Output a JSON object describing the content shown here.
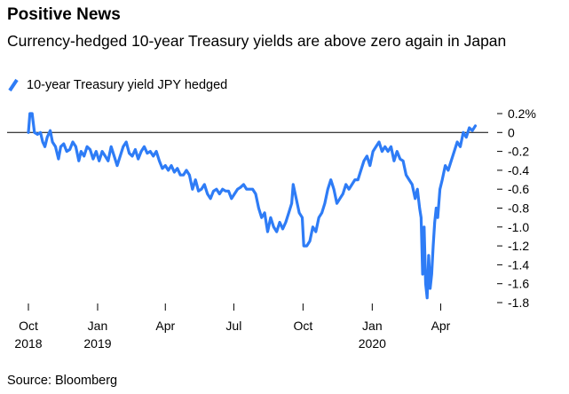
{
  "title": "Positive News",
  "subtitle": "Currency-hedged 10-year Treasury yields are above zero again in Japan",
  "source": "Source: Bloomberg",
  "chart_data": {
    "type": "line",
    "title": "Positive News",
    "subtitle": "Currency-hedged 10-year Treasury yields are above zero again in Japan",
    "legend": "top-left",
    "y_axis_position": "right",
    "ylim": [
      -1.8,
      0.2
    ],
    "y_ticks": [
      0.2,
      0,
      -0.2,
      -0.4,
      -0.6,
      -0.8,
      -1.0,
      -1.2,
      -1.4,
      -1.6,
      -1.8
    ],
    "y_tick_labels": [
      "0.2%",
      "0",
      "-0.2",
      "-0.4",
      "-0.6",
      "-0.8",
      "-1.0",
      "-1.2",
      "-1.4",
      "-1.6",
      "-1.8"
    ],
    "x_range": [
      "2018-10-01",
      "2020-05-20"
    ],
    "x_ticks": [
      {
        "date": "2018-10-01",
        "label": "Oct",
        "year": "2018"
      },
      {
        "date": "2019-01-01",
        "label": "Jan",
        "year": "2019"
      },
      {
        "date": "2019-04-01",
        "label": "Apr",
        "year": ""
      },
      {
        "date": "2019-07-01",
        "label": "Jul",
        "year": ""
      },
      {
        "date": "2019-10-01",
        "label": "Oct",
        "year": ""
      },
      {
        "date": "2020-01-01",
        "label": "Jan",
        "year": "2020"
      },
      {
        "date": "2020-04-01",
        "label": "Apr",
        "year": ""
      }
    ],
    "zero_line": true,
    "grid": false,
    "color": "#2e7cf6",
    "series": [
      {
        "name": "10-year Treasury yield JPY hedged",
        "points": [
          [
            "2018-10-01",
            0.0
          ],
          [
            "2018-10-03",
            0.2
          ],
          [
            "2018-10-06",
            0.2
          ],
          [
            "2018-10-09",
            0.0
          ],
          [
            "2018-10-13",
            -0.02
          ],
          [
            "2018-10-17",
            0.0
          ],
          [
            "2018-10-20",
            -0.1
          ],
          [
            "2018-10-23",
            -0.15
          ],
          [
            "2018-10-26",
            -0.05
          ],
          [
            "2018-10-30",
            0.02
          ],
          [
            "2018-11-02",
            -0.1
          ],
          [
            "2018-11-06",
            -0.15
          ],
          [
            "2018-11-10",
            -0.28
          ],
          [
            "2018-11-13",
            -0.15
          ],
          [
            "2018-11-17",
            -0.12
          ],
          [
            "2018-11-21",
            -0.2
          ],
          [
            "2018-11-25",
            -0.18
          ],
          [
            "2018-11-29",
            -0.1
          ],
          [
            "2018-12-03",
            -0.15
          ],
          [
            "2018-12-07",
            -0.3
          ],
          [
            "2018-12-10",
            -0.2
          ],
          [
            "2018-12-14",
            -0.25
          ],
          [
            "2018-12-18",
            -0.15
          ],
          [
            "2018-12-22",
            -0.18
          ],
          [
            "2018-12-26",
            -0.28
          ],
          [
            "2018-12-30",
            -0.2
          ],
          [
            "2019-01-03",
            -0.3
          ],
          [
            "2019-01-07",
            -0.2
          ],
          [
            "2019-01-11",
            -0.25
          ],
          [
            "2019-01-15",
            -0.3
          ],
          [
            "2019-01-19",
            -0.15
          ],
          [
            "2019-01-23",
            -0.25
          ],
          [
            "2019-01-27",
            -0.35
          ],
          [
            "2019-01-31",
            -0.25
          ],
          [
            "2019-02-04",
            -0.15
          ],
          [
            "2019-02-08",
            -0.1
          ],
          [
            "2019-02-12",
            -0.22
          ],
          [
            "2019-02-16",
            -0.25
          ],
          [
            "2019-02-20",
            -0.18
          ],
          [
            "2019-02-24",
            -0.28
          ],
          [
            "2019-02-28",
            -0.2
          ],
          [
            "2019-03-04",
            -0.15
          ],
          [
            "2019-03-08",
            -0.22
          ],
          [
            "2019-03-12",
            -0.2
          ],
          [
            "2019-03-16",
            -0.25
          ],
          [
            "2019-03-20",
            -0.2
          ],
          [
            "2019-03-24",
            -0.3
          ],
          [
            "2019-03-28",
            -0.38
          ],
          [
            "2019-04-01",
            -0.35
          ],
          [
            "2019-04-05",
            -0.4
          ],
          [
            "2019-04-09",
            -0.35
          ],
          [
            "2019-04-13",
            -0.42
          ],
          [
            "2019-04-17",
            -0.38
          ],
          [
            "2019-04-21",
            -0.45
          ],
          [
            "2019-04-25",
            -0.45
          ],
          [
            "2019-04-29",
            -0.4
          ],
          [
            "2019-05-03",
            -0.45
          ],
          [
            "2019-05-07",
            -0.6
          ],
          [
            "2019-05-11",
            -0.5
          ],
          [
            "2019-05-15",
            -0.62
          ],
          [
            "2019-05-19",
            -0.6
          ],
          [
            "2019-05-23",
            -0.55
          ],
          [
            "2019-05-27",
            -0.65
          ],
          [
            "2019-05-31",
            -0.7
          ],
          [
            "2019-06-04",
            -0.62
          ],
          [
            "2019-06-08",
            -0.6
          ],
          [
            "2019-06-12",
            -0.65
          ],
          [
            "2019-06-16",
            -0.6
          ],
          [
            "2019-06-20",
            -0.62
          ],
          [
            "2019-06-24",
            -0.62
          ],
          [
            "2019-06-28",
            -0.7
          ],
          [
            "2019-07-02",
            -0.65
          ],
          [
            "2019-07-06",
            -0.6
          ],
          [
            "2019-07-10",
            -0.58
          ],
          [
            "2019-07-14",
            -0.55
          ],
          [
            "2019-07-18",
            -0.6
          ],
          [
            "2019-07-22",
            -0.6
          ],
          [
            "2019-07-26",
            -0.6
          ],
          [
            "2019-07-30",
            -0.65
          ],
          [
            "2019-08-03",
            -0.8
          ],
          [
            "2019-08-07",
            -0.9
          ],
          [
            "2019-08-11",
            -0.85
          ],
          [
            "2019-08-15",
            -1.05
          ],
          [
            "2019-08-19",
            -0.9
          ],
          [
            "2019-08-23",
            -1.0
          ],
          [
            "2019-08-27",
            -1.05
          ],
          [
            "2019-08-31",
            -0.95
          ],
          [
            "2019-09-04",
            -1.02
          ],
          [
            "2019-09-08",
            -0.95
          ],
          [
            "2019-09-12",
            -0.85
          ],
          [
            "2019-09-16",
            -0.75
          ],
          [
            "2019-09-18",
            -0.55
          ],
          [
            "2019-09-22",
            -0.7
          ],
          [
            "2019-09-26",
            -0.85
          ],
          [
            "2019-09-30",
            -0.9
          ],
          [
            "2019-10-02",
            -1.2
          ],
          [
            "2019-10-06",
            -1.2
          ],
          [
            "2019-10-10",
            -1.15
          ],
          [
            "2019-10-14",
            -1.0
          ],
          [
            "2019-10-18",
            -1.05
          ],
          [
            "2019-10-22",
            -0.9
          ],
          [
            "2019-10-26",
            -0.85
          ],
          [
            "2019-10-30",
            -0.75
          ],
          [
            "2019-11-03",
            -0.6
          ],
          [
            "2019-11-07",
            -0.5
          ],
          [
            "2019-11-11",
            -0.6
          ],
          [
            "2019-11-15",
            -0.75
          ],
          [
            "2019-11-19",
            -0.7
          ],
          [
            "2019-11-23",
            -0.65
          ],
          [
            "2019-11-27",
            -0.55
          ],
          [
            "2019-12-01",
            -0.6
          ],
          [
            "2019-12-05",
            -0.55
          ],
          [
            "2019-12-09",
            -0.5
          ],
          [
            "2019-12-13",
            -0.5
          ],
          [
            "2019-12-17",
            -0.4
          ],
          [
            "2019-12-21",
            -0.3
          ],
          [
            "2019-12-25",
            -0.25
          ],
          [
            "2019-12-29",
            -0.35
          ],
          [
            "2020-01-02",
            -0.2
          ],
          [
            "2020-01-06",
            -0.15
          ],
          [
            "2020-01-10",
            -0.1
          ],
          [
            "2020-01-14",
            -0.2
          ],
          [
            "2020-01-18",
            -0.15
          ],
          [
            "2020-01-22",
            -0.2
          ],
          [
            "2020-01-26",
            -0.15
          ],
          [
            "2020-01-30",
            -0.3
          ],
          [
            "2020-02-03",
            -0.2
          ],
          [
            "2020-02-07",
            -0.28
          ],
          [
            "2020-02-11",
            -0.3
          ],
          [
            "2020-02-15",
            -0.45
          ],
          [
            "2020-02-19",
            -0.5
          ],
          [
            "2020-02-23",
            -0.55
          ],
          [
            "2020-02-27",
            -0.7
          ],
          [
            "2020-03-01",
            -0.6
          ],
          [
            "2020-03-04",
            -0.8
          ],
          [
            "2020-03-06",
            -0.9
          ],
          [
            "2020-03-08",
            -1.5
          ],
          [
            "2020-03-10",
            -1.0
          ],
          [
            "2020-03-12",
            -1.6
          ],
          [
            "2020-03-14",
            -1.75
          ],
          [
            "2020-03-16",
            -1.3
          ],
          [
            "2020-03-18",
            -1.65
          ],
          [
            "2020-03-20",
            -1.5
          ],
          [
            "2020-03-22",
            -1.2
          ],
          [
            "2020-03-24",
            -0.95
          ],
          [
            "2020-03-26",
            -0.8
          ],
          [
            "2020-03-28",
            -0.9
          ],
          [
            "2020-03-31",
            -0.6
          ],
          [
            "2020-04-03",
            -0.5
          ],
          [
            "2020-04-07",
            -0.35
          ],
          [
            "2020-04-11",
            -0.4
          ],
          [
            "2020-04-15",
            -0.3
          ],
          [
            "2020-04-19",
            -0.2
          ],
          [
            "2020-04-23",
            -0.1
          ],
          [
            "2020-04-27",
            -0.15
          ],
          [
            "2020-05-01",
            0.0
          ],
          [
            "2020-05-05",
            -0.05
          ],
          [
            "2020-05-09",
            0.05
          ],
          [
            "2020-05-13",
            0.02
          ],
          [
            "2020-05-17",
            0.07
          ]
        ]
      }
    ]
  }
}
